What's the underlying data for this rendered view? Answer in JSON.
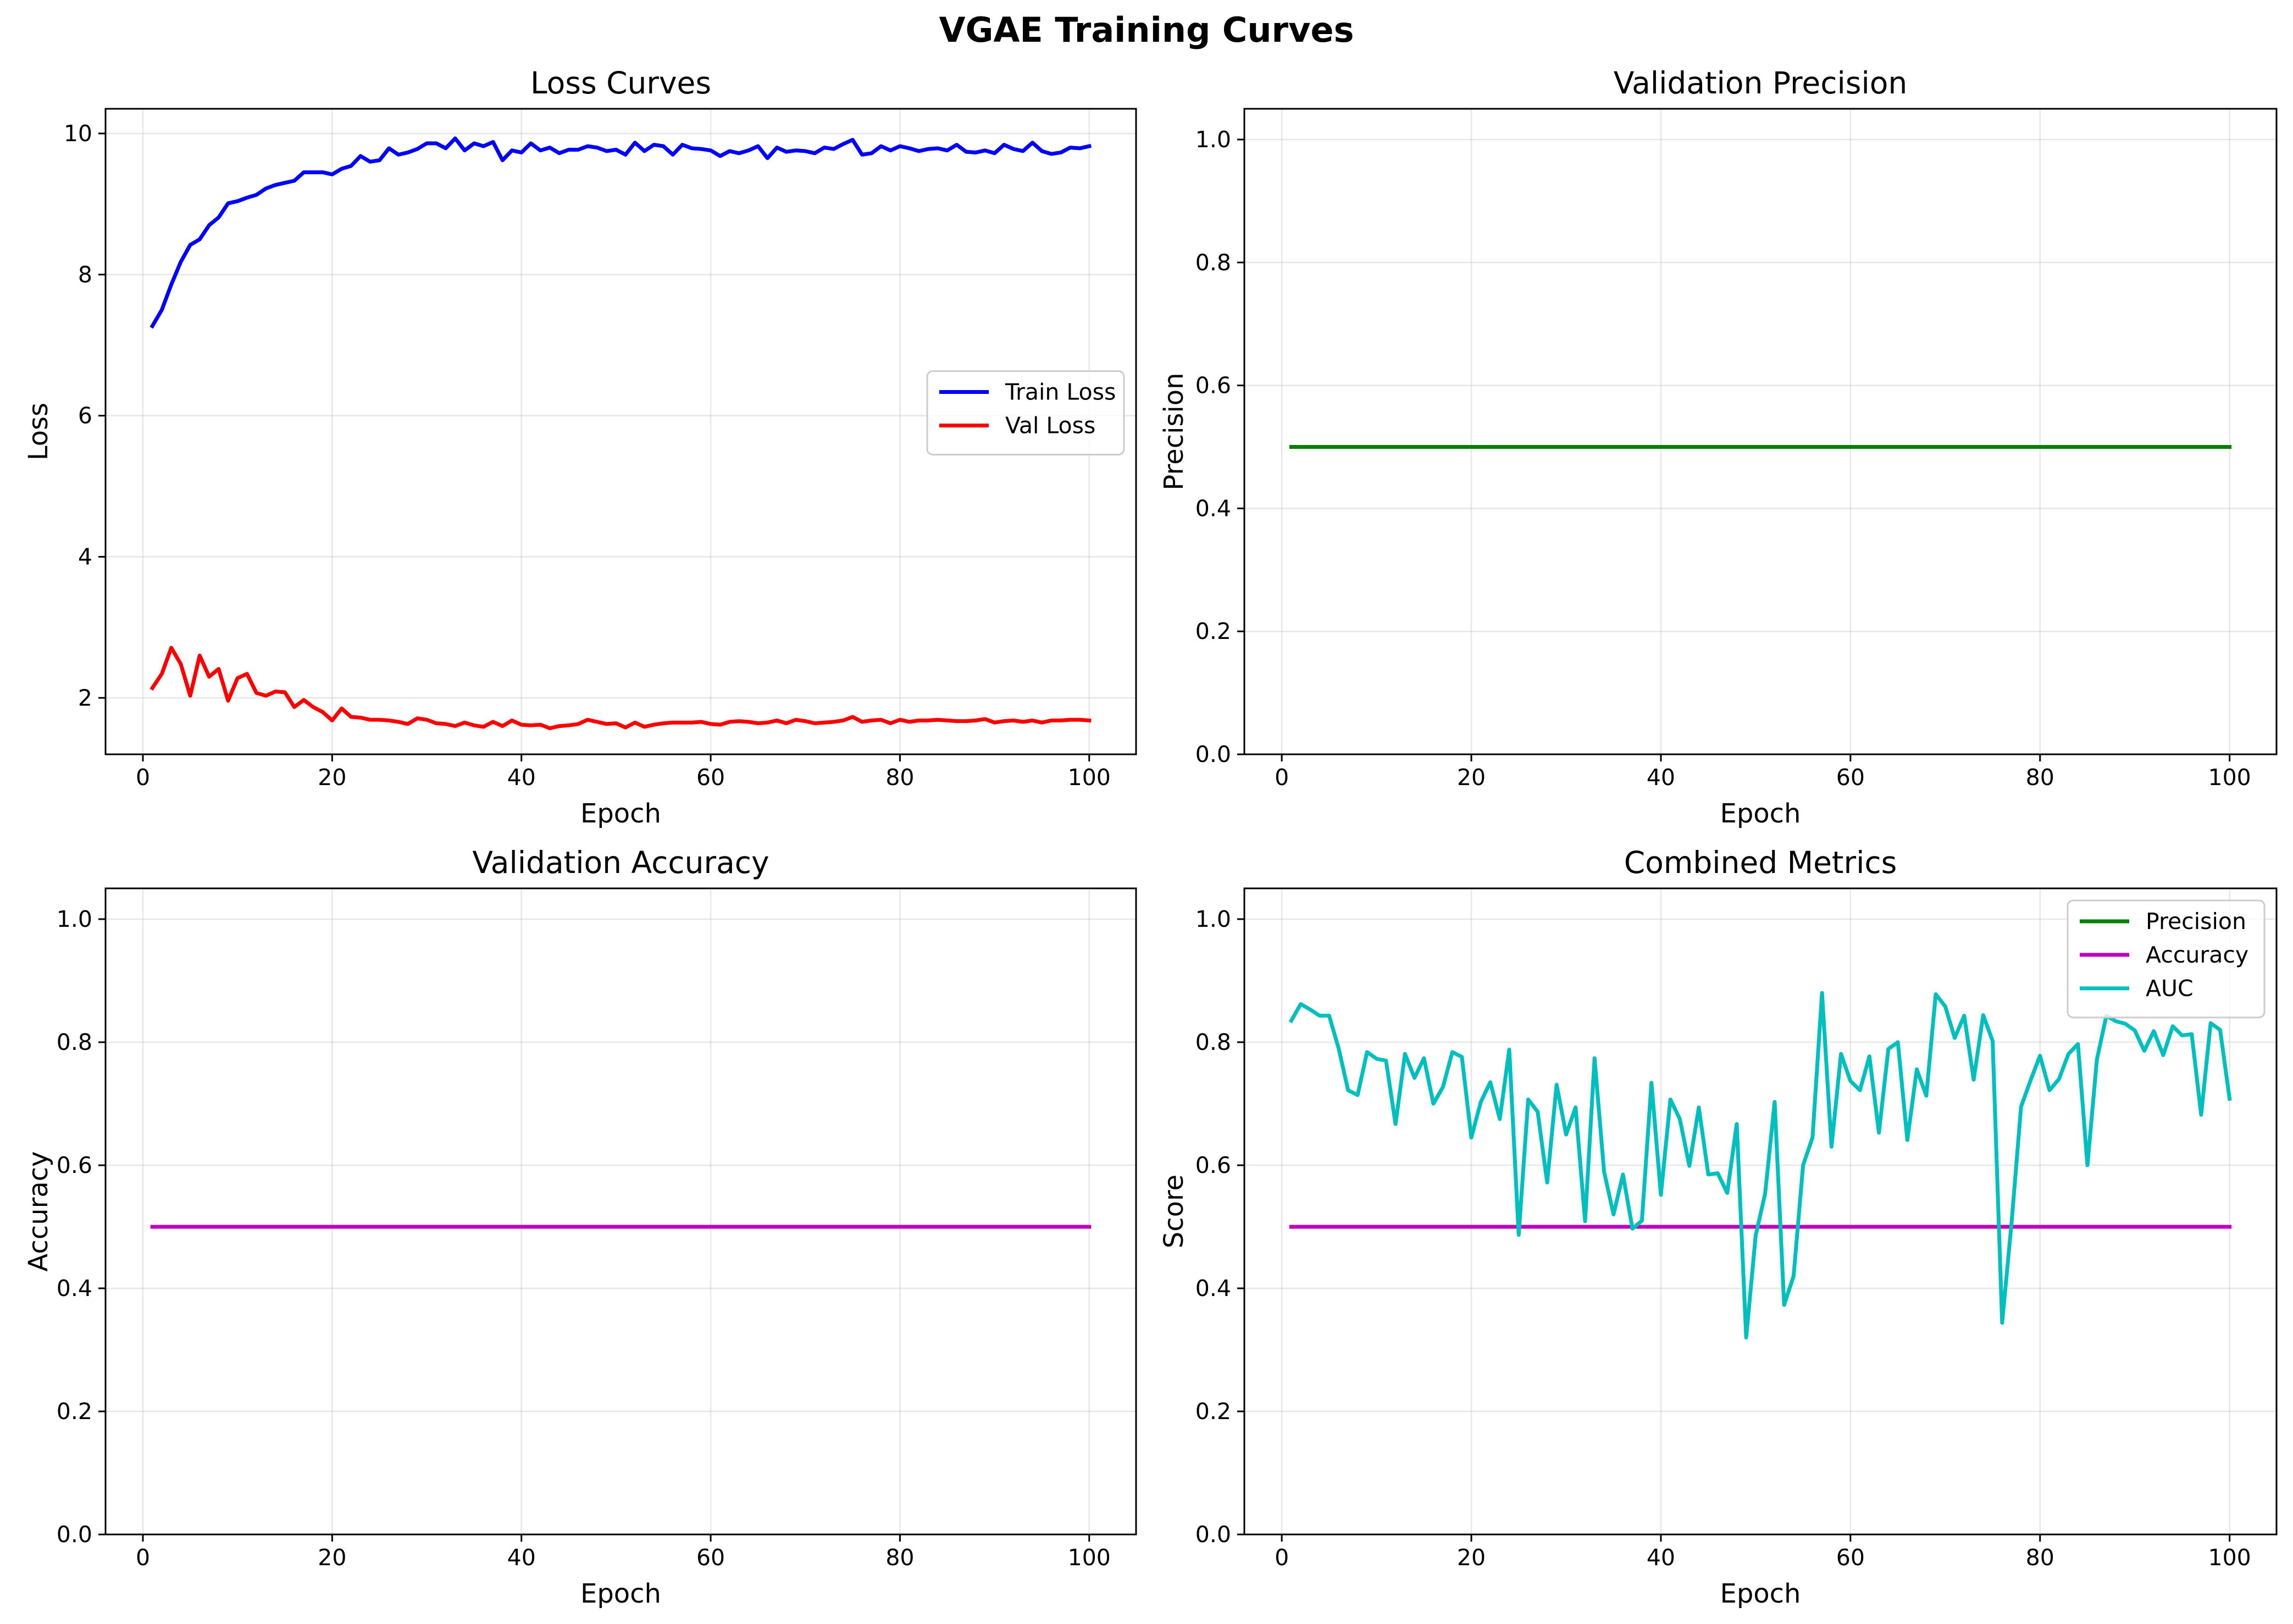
{
  "suptitle": "VGAE Training Curves",
  "chart_data": [
    {
      "type": "line",
      "title": "Loss Curves",
      "xlabel": "Epoch",
      "ylabel": "Loss",
      "xlim": [
        -3.95,
        104.95
      ],
      "ylim": [
        1.2,
        10.35
      ],
      "xticks": [
        0,
        20,
        40,
        60,
        80,
        100
      ],
      "yticks": [
        2,
        4,
        6,
        8,
        10
      ],
      "ytick_labels": [
        "2",
        "4",
        "6",
        "8",
        "10"
      ],
      "grid": true,
      "legend": "center-right",
      "x": [
        1,
        2,
        3,
        4,
        5,
        6,
        7,
        8,
        9,
        10,
        11,
        12,
        13,
        14,
        15,
        16,
        17,
        18,
        19,
        20,
        21,
        22,
        23,
        24,
        25,
        26,
        27,
        28,
        29,
        30,
        31,
        32,
        33,
        34,
        35,
        36,
        37,
        38,
        39,
        40,
        41,
        42,
        43,
        44,
        45,
        46,
        47,
        48,
        49,
        50,
        51,
        52,
        53,
        54,
        55,
        56,
        57,
        58,
        59,
        60,
        61,
        62,
        63,
        64,
        65,
        66,
        67,
        68,
        69,
        70,
        71,
        72,
        73,
        74,
        75,
        76,
        77,
        78,
        79,
        80,
        81,
        82,
        83,
        84,
        85,
        86,
        87,
        88,
        89,
        90,
        91,
        92,
        93,
        94,
        95,
        96,
        97,
        98,
        99,
        100
      ],
      "series": [
        {
          "name": "Train Loss",
          "color": "#0000ff",
          "values": [
            7.27,
            7.5,
            7.86,
            8.18,
            8.42,
            8.5,
            8.7,
            8.81,
            9.01,
            9.04,
            9.09,
            9.13,
            9.22,
            9.27,
            9.3,
            9.33,
            9.45,
            9.45,
            9.45,
            9.42,
            9.5,
            9.54,
            9.68,
            9.6,
            9.62,
            9.79,
            9.7,
            9.73,
            9.78,
            9.86,
            9.86,
            9.79,
            9.93,
            9.76,
            9.86,
            9.82,
            9.88,
            9.62,
            9.76,
            9.73,
            9.86,
            9.76,
            9.8,
            9.72,
            9.77,
            9.77,
            9.82,
            9.8,
            9.75,
            9.77,
            9.7,
            9.87,
            9.75,
            9.84,
            9.82,
            9.7,
            9.84,
            9.79,
            9.78,
            9.76,
            9.68,
            9.75,
            9.72,
            9.76,
            9.82,
            9.65,
            9.8,
            9.74,
            9.76,
            9.75,
            9.72,
            9.8,
            9.78,
            9.85,
            9.91,
            9.7,
            9.72,
            9.82,
            9.76,
            9.82,
            9.79,
            9.75,
            9.78,
            9.79,
            9.76,
            9.84,
            9.74,
            9.73,
            9.76,
            9.72,
            9.84,
            9.78,
            9.75,
            9.87,
            9.75,
            9.71,
            9.73,
            9.8,
            9.79,
            9.82
          ]
        },
        {
          "name": "Val Loss",
          "color": "#ff0000",
          "values": [
            2.14,
            2.34,
            2.71,
            2.48,
            2.03,
            2.6,
            2.3,
            2.41,
            1.96,
            2.28,
            2.34,
            2.07,
            2.03,
            2.09,
            2.08,
            1.87,
            1.97,
            1.87,
            1.8,
            1.68,
            1.85,
            1.73,
            1.72,
            1.69,
            1.69,
            1.68,
            1.66,
            1.63,
            1.71,
            1.69,
            1.64,
            1.63,
            1.6,
            1.65,
            1.61,
            1.59,
            1.66,
            1.6,
            1.68,
            1.62,
            1.61,
            1.62,
            1.57,
            1.6,
            1.61,
            1.63,
            1.69,
            1.66,
            1.63,
            1.64,
            1.58,
            1.65,
            1.59,
            1.62,
            1.64,
            1.65,
            1.65,
            1.65,
            1.66,
            1.63,
            1.62,
            1.66,
            1.67,
            1.66,
            1.64,
            1.65,
            1.68,
            1.64,
            1.69,
            1.67,
            1.64,
            1.65,
            1.66,
            1.68,
            1.73,
            1.66,
            1.68,
            1.69,
            1.64,
            1.69,
            1.66,
            1.68,
            1.68,
            1.69,
            1.68,
            1.67,
            1.67,
            1.68,
            1.7,
            1.65,
            1.67,
            1.68,
            1.66,
            1.68,
            1.65,
            1.68,
            1.68,
            1.69,
            1.69,
            1.68
          ]
        }
      ]
    },
    {
      "type": "line",
      "title": "Validation Precision",
      "xlabel": "Epoch",
      "ylabel": "Precision",
      "xlim": [
        -3.95,
        104.95
      ],
      "ylim": [
        0,
        1.05
      ],
      "xticks": [
        0,
        20,
        40,
        60,
        80,
        100
      ],
      "yticks": [
        0,
        0.2,
        0.4,
        0.6,
        0.8,
        1.0
      ],
      "ytick_labels": [
        "0.0",
        "0.2",
        "0.4",
        "0.6",
        "0.8",
        "1.0"
      ],
      "grid": true,
      "series": [
        {
          "color": "#008000",
          "constant": 0.5,
          "x_range": [
            1,
            100
          ]
        }
      ]
    },
    {
      "type": "line",
      "title": "Validation Accuracy",
      "xlabel": "Epoch",
      "ylabel": "Accuracy",
      "xlim": [
        -3.95,
        104.95
      ],
      "ylim": [
        0,
        1.05
      ],
      "xticks": [
        0,
        20,
        40,
        60,
        80,
        100
      ],
      "yticks": [
        0,
        0.2,
        0.4,
        0.6,
        0.8,
        1.0
      ],
      "ytick_labels": [
        "0.0",
        "0.2",
        "0.4",
        "0.6",
        "0.8",
        "1.0"
      ],
      "grid": true,
      "series": [
        {
          "color": "#bf00bf",
          "constant": 0.5,
          "x_range": [
            1,
            100
          ]
        }
      ]
    },
    {
      "type": "line",
      "title": "Combined Metrics",
      "xlabel": "Epoch",
      "ylabel": "Score",
      "xlim": [
        -3.95,
        104.95
      ],
      "ylim": [
        0,
        1.05
      ],
      "xticks": [
        0,
        20,
        40,
        60,
        80,
        100
      ],
      "yticks": [
        0,
        0.2,
        0.4,
        0.6,
        0.8,
        1.0
      ],
      "ytick_labels": [
        "0.0",
        "0.2",
        "0.4",
        "0.6",
        "0.8",
        "1.0"
      ],
      "grid": true,
      "legend": "top-right",
      "x": [
        1,
        2,
        3,
        4,
        5,
        6,
        7,
        8,
        9,
        10,
        11,
        12,
        13,
        14,
        15,
        16,
        17,
        18,
        19,
        20,
        21,
        22,
        23,
        24,
        25,
        26,
        27,
        28,
        29,
        30,
        31,
        32,
        33,
        34,
        35,
        36,
        37,
        38,
        39,
        40,
        41,
        42,
        43,
        44,
        45,
        46,
        47,
        48,
        49,
        50,
        51,
        52,
        53,
        54,
        55,
        56,
        57,
        58,
        59,
        60,
        61,
        62,
        63,
        64,
        65,
        66,
        67,
        68,
        69,
        70,
        71,
        72,
        73,
        74,
        75,
        76,
        77,
        78,
        79,
        80,
        81,
        82,
        83,
        84,
        85,
        86,
        87,
        88,
        89,
        90,
        91,
        92,
        93,
        94,
        95,
        96,
        97,
        98,
        99,
        100
      ],
      "series": [
        {
          "name": "Precision",
          "color": "#008000",
          "constant": 0.5,
          "x_range": [
            1,
            100
          ]
        },
        {
          "name": "Accuracy",
          "color": "#bf00bf",
          "constant": 0.5,
          "x_range": [
            1,
            100
          ]
        },
        {
          "name": "AUC",
          "color": "#00bfbf",
          "values": [
            0.835,
            0.862,
            0.853,
            0.843,
            0.843,
            0.79,
            0.722,
            0.714,
            0.784,
            0.773,
            0.77,
            0.667,
            0.781,
            0.742,
            0.774,
            0.7,
            0.727,
            0.784,
            0.776,
            0.645,
            0.703,
            0.735,
            0.675,
            0.788,
            0.487,
            0.707,
            0.687,
            0.572,
            0.731,
            0.65,
            0.694,
            0.509,
            0.774,
            0.59,
            0.52,
            0.585,
            0.497,
            0.51,
            0.734,
            0.552,
            0.707,
            0.675,
            0.599,
            0.694,
            0.585,
            0.587,
            0.555,
            0.667,
            0.32,
            0.486,
            0.554,
            0.703,
            0.373,
            0.42,
            0.6,
            0.645,
            0.88,
            0.63,
            0.781,
            0.737,
            0.722,
            0.777,
            0.653,
            0.789,
            0.8,
            0.641,
            0.756,
            0.713,
            0.878,
            0.858,
            0.807,
            0.843,
            0.739,
            0.844,
            0.802,
            0.344,
            0.507,
            0.695,
            0.738,
            0.778,
            0.722,
            0.74,
            0.781,
            0.797,
            0.6,
            0.772,
            0.843,
            0.834,
            0.83,
            0.819,
            0.786,
            0.818,
            0.779,
            0.826,
            0.811,
            0.813,
            0.682,
            0.831,
            0.82,
            0.708
          ]
        }
      ]
    }
  ]
}
